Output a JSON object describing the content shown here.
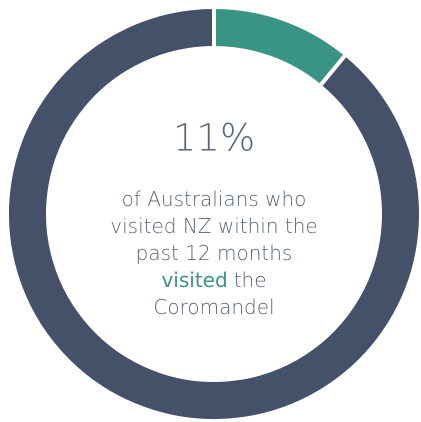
{
  "chart_data": {
    "type": "donut",
    "values": [
      11,
      89
    ],
    "value_labels": [
      "11%",
      null
    ],
    "colors": [
      "#3a9484",
      "#445169"
    ],
    "description_lines": [
      [
        {
          "text": "of Australians who"
        }
      ],
      [
        {
          "text": "visited NZ within the"
        }
      ],
      [
        {
          "text": "past 12 months"
        }
      ],
      [
        {
          "text": "visited",
          "highlight": true
        },
        {
          "text": "the"
        }
      ],
      [
        {
          "text": "Coromandel"
        }
      ]
    ],
    "text_color": "#5b6577",
    "highlight_color": "#3a9484"
  }
}
